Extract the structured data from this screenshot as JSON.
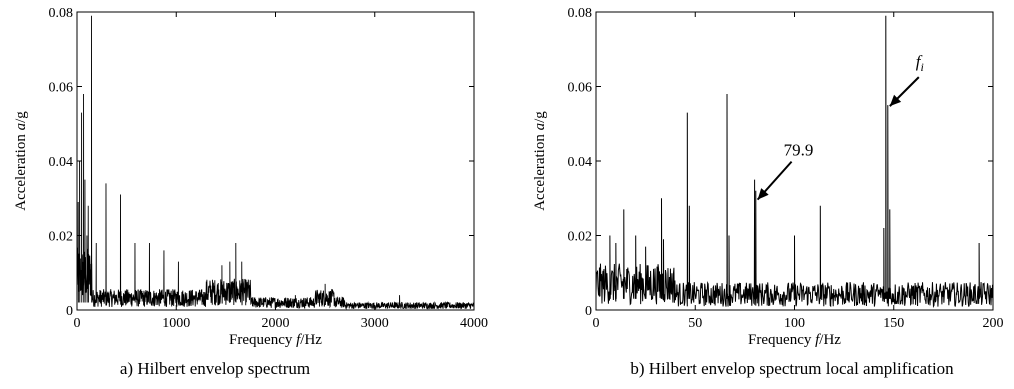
{
  "chart_data": [
    {
      "type": "line",
      "caption": "a) Hilbert envelop spectrum",
      "xlabel": {
        "prefix": "Frequency ",
        "var": "f",
        "suffix": "/Hz"
      },
      "ylabel": {
        "prefix": "Acceleration ",
        "var": "a",
        "suffix": "/g"
      },
      "xlim": [
        0,
        4000
      ],
      "ylim": [
        0,
        0.08
      ],
      "xticks": [
        0,
        1000,
        2000,
        3000,
        4000
      ],
      "yticks": [
        0,
        0.02,
        0.04,
        0.06,
        0.08
      ],
      "ytick_labels": [
        "0",
        "0.02",
        "0.04",
        "0.06",
        "0.08"
      ],
      "grid": false,
      "peaks": [
        {
          "x": 12,
          "y": 0.029
        },
        {
          "x": 26,
          "y": 0.04
        },
        {
          "x": 46,
          "y": 0.053
        },
        {
          "x": 66,
          "y": 0.058
        },
        {
          "x": 80,
          "y": 0.035
        },
        {
          "x": 100,
          "y": 0.02
        },
        {
          "x": 113,
          "y": 0.028
        },
        {
          "x": 146,
          "y": 0.079
        },
        {
          "x": 194,
          "y": 0.018
        },
        {
          "x": 292,
          "y": 0.034
        },
        {
          "x": 438,
          "y": 0.031
        },
        {
          "x": 584,
          "y": 0.018
        },
        {
          "x": 730,
          "y": 0.018
        },
        {
          "x": 876,
          "y": 0.016
        },
        {
          "x": 1022,
          "y": 0.013
        },
        {
          "x": 1460,
          "y": 0.012
        },
        {
          "x": 1540,
          "y": 0.013
        },
        {
          "x": 1600,
          "y": 0.018
        },
        {
          "x": 1660,
          "y": 0.013
        },
        {
          "x": 2200,
          "y": 0.004
        },
        {
          "x": 2500,
          "y": 0.007
        },
        {
          "x": 3250,
          "y": 0.004
        }
      ]
    },
    {
      "type": "line",
      "caption": "b) Hilbert envelop spectrum local amplification",
      "xlabel": {
        "prefix": "Frequency ",
        "var": "f",
        "suffix": "/Hz"
      },
      "ylabel": {
        "prefix": "Acceleration ",
        "var": "a",
        "suffix": "/g"
      },
      "xlim": [
        0,
        200
      ],
      "ylim": [
        0,
        0.08
      ],
      "xticks": [
        0,
        50,
        100,
        150,
        200
      ],
      "yticks": [
        0,
        0.02,
        0.04,
        0.06,
        0.08
      ],
      "ytick_labels": [
        "0",
        "0.02",
        "0.04",
        "0.06",
        "0.08"
      ],
      "grid": false,
      "peaks": [
        {
          "x": 7,
          "y": 0.02
        },
        {
          "x": 10,
          "y": 0.018
        },
        {
          "x": 14,
          "y": 0.027
        },
        {
          "x": 20,
          "y": 0.02
        },
        {
          "x": 25,
          "y": 0.017
        },
        {
          "x": 33,
          "y": 0.03
        },
        {
          "x": 34,
          "y": 0.019
        },
        {
          "x": 46,
          "y": 0.053
        },
        {
          "x": 47,
          "y": 0.028
        },
        {
          "x": 66,
          "y": 0.058
        },
        {
          "x": 67,
          "y": 0.02
        },
        {
          "x": 79.9,
          "y": 0.035
        },
        {
          "x": 80.5,
          "y": 0.032
        },
        {
          "x": 100,
          "y": 0.02
        },
        {
          "x": 113,
          "y": 0.028
        },
        {
          "x": 145,
          "y": 0.022
        },
        {
          "x": 146,
          "y": 0.079
        },
        {
          "x": 147,
          "y": 0.055
        },
        {
          "x": 148,
          "y": 0.027
        },
        {
          "x": 193,
          "y": 0.018
        }
      ],
      "annotations": [
        {
          "text": "79.9",
          "x": 79.9,
          "y": 0.035
        },
        {
          "text": "f",
          "sub": "i",
          "x": 146,
          "y": 0.055
        }
      ]
    }
  ]
}
